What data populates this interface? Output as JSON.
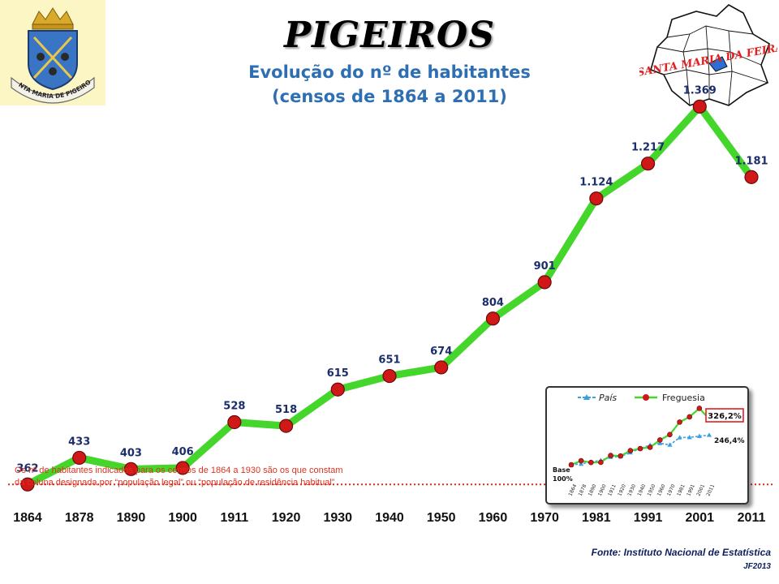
{
  "header": {
    "title": "PIGEIROS",
    "subtitle_line1": "Evolução do nº de habitantes",
    "subtitle_line2": "(censos de 1864 a 2011)",
    "crest_text": "SANTA MARIA DE PIGEIROS",
    "map_label": "SANTA MARIA DA FEIRA"
  },
  "note": {
    "line1": "Os nº de habitantes indicados para os censos de 1864 a 1930 são os que constam",
    "line2": "da coluna designada por “população legal” ou “população de residência habitual”"
  },
  "source": {
    "line1": "Fonte: Instituto Nacional de Estatística",
    "line2": "JF2013"
  },
  "colors": {
    "line": "#45d62c",
    "marker": "#d01818",
    "label": "#1b2d6b",
    "baseline": "#dd2a1a",
    "pais": "#3ba0e0"
  },
  "chart_data": [
    {
      "type": "line",
      "title": "Evolução do nº de habitantes (censos de 1864 a 2011)",
      "categories": [
        "1864",
        "1878",
        "1890",
        "1900",
        "1911",
        "1920",
        "1930",
        "1940",
        "1950",
        "1960",
        "1970",
        "1981",
        "1991",
        "2001",
        "2011"
      ],
      "values": [
        362,
        433,
        403,
        406,
        528,
        518,
        615,
        651,
        674,
        804,
        901,
        1124,
        1217,
        1369,
        1181
      ],
      "value_labels": [
        "362",
        "433",
        "403",
        "406",
        "528",
        "518",
        "615",
        "651",
        "674",
        "804",
        "901",
        "1.124",
        "1.217",
        "1.369",
        "1.181"
      ],
      "baseline": 362,
      "ylim": [
        140,
        1480
      ],
      "grid": false
    },
    {
      "type": "line",
      "categories": [
        "1864",
        "1878",
        "1890",
        "1900",
        "1911",
        "1920",
        "1930",
        "1940",
        "1950",
        "1960",
        "1970",
        "1981",
        "1991",
        "2001",
        "2011"
      ],
      "legend": "top",
      "series": [
        {
          "name": "País",
          "values": [
            100,
            104,
            114,
            122,
            138,
            141,
            160,
            180,
            197,
            206,
            198,
            234,
            235,
            241,
            246.4
          ]
        },
        {
          "name": "Freguesia",
          "values": [
            100,
            119.6,
            111.3,
            112.2,
            145.9,
            143.1,
            169.9,
            179.8,
            186.2,
            222.1,
            248.9,
            310.5,
            336.2,
            378.2,
            326.2
          ]
        }
      ],
      "annotations": {
        "base": "Base",
        "base_pct": "100%",
        "freguesia_end": "326,2%",
        "pais_end": "246,4%"
      },
      "ylim": [
        80,
        400
      ]
    }
  ]
}
